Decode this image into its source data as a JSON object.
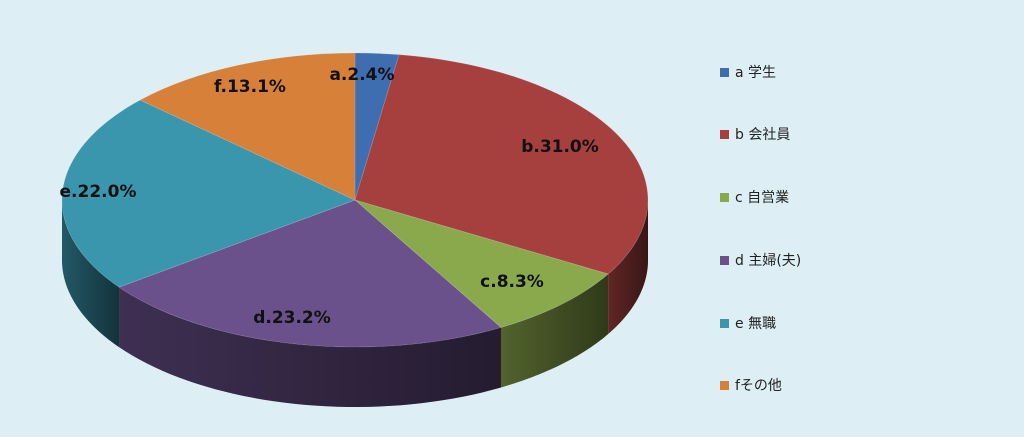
{
  "chart_data": {
    "type": "pie",
    "title": "",
    "slices": [
      {
        "key": "a",
        "label": "a.2.4%",
        "legend": "a 学生",
        "value": 2.4,
        "color": "#3e6db0"
      },
      {
        "key": "b",
        "label": "b.31.0%",
        "legend": "b 会社員",
        "value": 31.0,
        "color": "#a5403f"
      },
      {
        "key": "c",
        "label": "c.8.3%",
        "legend": "c 自営業",
        "value": 8.3,
        "color": "#8aa84c"
      },
      {
        "key": "d",
        "label": "d.23.2%",
        "legend": "d 主婦(夫)",
        "value": 23.2,
        "color": "#6b518c"
      },
      {
        "key": "e",
        "label": "e.22.0%",
        "legend": "e 無職",
        "value": 22.0,
        "color": "#3a96ad"
      },
      {
        "key": "f",
        "label": "f.13.1%",
        "legend": "fその他",
        "value": 13.1,
        "color": "#d6803a"
      }
    ],
    "legend_position": "right",
    "style": "3d-pie"
  }
}
